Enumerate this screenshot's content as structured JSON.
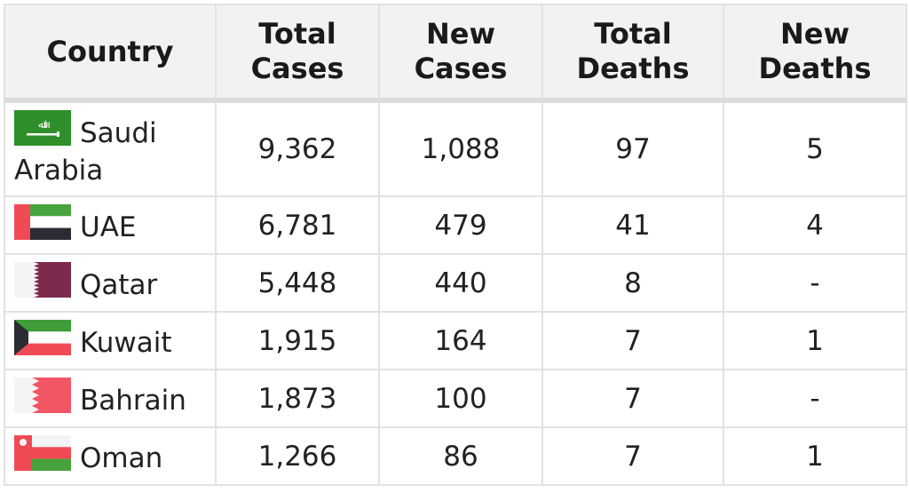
{
  "chart_data": {
    "type": "table",
    "columns": [
      "Country",
      "Total Cases",
      "New Cases",
      "Total Deaths",
      "New Deaths"
    ],
    "rows": [
      {
        "country": "Saudi Arabia",
        "flag_icon": "saudi-arabia-flag-icon",
        "total_cases": "9,362",
        "new_cases": "1,088",
        "total_deaths": "97",
        "new_deaths": "5"
      },
      {
        "country": "UAE",
        "flag_icon": "uae-flag-icon",
        "total_cases": "6,781",
        "new_cases": "479",
        "total_deaths": "41",
        "new_deaths": "4"
      },
      {
        "country": "Qatar",
        "flag_icon": "qatar-flag-icon",
        "total_cases": "5,448",
        "new_cases": "440",
        "total_deaths": "8",
        "new_deaths": "-"
      },
      {
        "country": "Kuwait",
        "flag_icon": "kuwait-flag-icon",
        "total_cases": "1,915",
        "new_cases": "164",
        "total_deaths": "7",
        "new_deaths": "1"
      },
      {
        "country": "Bahrain",
        "flag_icon": "bahrain-flag-icon",
        "total_cases": "1,873",
        "new_cases": "100",
        "total_deaths": "7",
        "new_deaths": "-"
      },
      {
        "country": "Oman",
        "flag_icon": "oman-flag-icon",
        "total_cases": "1,266",
        "new_cases": "86",
        "total_deaths": "7",
        "new_deaths": "1"
      }
    ]
  },
  "colors": {
    "header_bg": "#f2f2f2",
    "border": "#e2e2e2",
    "text": "#222222"
  }
}
